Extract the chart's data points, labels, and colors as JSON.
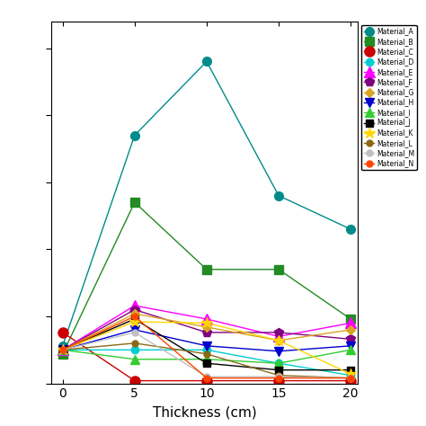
{
  "x": [
    0,
    5,
    10,
    15,
    20
  ],
  "series": [
    {
      "label": "Material_A",
      "color": "#008B8B",
      "marker": "o",
      "markersize": 7,
      "markerfacecolor": "#008B8B",
      "values": [
        0.28,
        1.85,
        2.4,
        1.4,
        1.15
      ]
    },
    {
      "label": "Material_B",
      "color": "#228B22",
      "marker": "s",
      "markersize": 7,
      "markerfacecolor": "#228B22",
      "values": [
        0.22,
        1.35,
        0.85,
        0.85,
        0.48
      ]
    },
    {
      "label": "Material_C",
      "color": "#cc0000",
      "marker": "o",
      "markersize": 8,
      "markerfacecolor": "#cc0000",
      "values": [
        0.38,
        0.02,
        0.02,
        0.02,
        0.02
      ]
    },
    {
      "label": "Material_D",
      "color": "#00ced1",
      "marker": "o",
      "markersize": 6,
      "markerfacecolor": "#00ced1",
      "values": [
        0.25,
        0.25,
        0.25,
        0.15,
        0.06
      ]
    },
    {
      "label": "Material_E",
      "color": "#ff00ff",
      "marker": "^",
      "markersize": 8,
      "markerfacecolor": "#ff00ff",
      "values": [
        0.25,
        0.58,
        0.48,
        0.35,
        0.45
      ]
    },
    {
      "label": "Material_F",
      "color": "#800080",
      "marker": "p",
      "markersize": 7,
      "markerfacecolor": "#800080",
      "values": [
        0.25,
        0.55,
        0.38,
        0.38,
        0.33
      ]
    },
    {
      "label": "Material_G",
      "color": "#DAA520",
      "marker": "D",
      "markersize": 5,
      "markerfacecolor": "#DAA520",
      "values": [
        0.25,
        0.52,
        0.42,
        0.32,
        0.4
      ]
    },
    {
      "label": "Material_H",
      "color": "#0000cd",
      "marker": "v",
      "markersize": 7,
      "markerfacecolor": "#0000cd",
      "values": [
        0.25,
        0.4,
        0.28,
        0.24,
        0.28
      ]
    },
    {
      "label": "Material_I",
      "color": "#32cd32",
      "marker": "^",
      "markersize": 7,
      "markerfacecolor": "#32cd32",
      "values": [
        0.25,
        0.18,
        0.18,
        0.15,
        0.25
      ]
    },
    {
      "label": "Material_J",
      "color": "#000000",
      "marker": "s",
      "markersize": 6,
      "markerfacecolor": "#000000",
      "values": [
        0.25,
        0.48,
        0.15,
        0.1,
        0.1
      ]
    },
    {
      "label": "Material_K",
      "color": "#ffd700",
      "marker": "*",
      "markersize": 9,
      "markerfacecolor": "#ffd700",
      "values": [
        0.25,
        0.46,
        0.45,
        0.32,
        0.07
      ]
    },
    {
      "label": "Material_L",
      "color": "#8B6914",
      "marker": "o",
      "markersize": 5,
      "markerfacecolor": "#8B6914",
      "values": [
        0.25,
        0.3,
        0.22,
        0.06,
        0.04
      ]
    },
    {
      "label": "Material_M",
      "color": "#c0c0c0",
      "marker": "o",
      "markersize": 5,
      "markerfacecolor": "#c0c0c0",
      "values": [
        0.25,
        0.38,
        0.05,
        0.05,
        0.04
      ]
    },
    {
      "label": "Material_N",
      "color": "#ff4500",
      "marker": "o",
      "markersize": 5,
      "markerfacecolor": "#ff4500",
      "values": [
        0.25,
        0.5,
        0.04,
        0.04,
        0.04
      ]
    }
  ],
  "xlabel": "Thickness (cm)",
  "xlim": [
    -0.8,
    20.5
  ],
  "ylim": [
    0,
    2.7
  ],
  "xticks": [
    0,
    5,
    10,
    15,
    20
  ],
  "background_color": "#ffffff",
  "legend_colors": [
    "#ff9999",
    "#ffcccc",
    "#00cc99",
    "#3399ff",
    "#00ffff",
    "#ff9900",
    "#cc6600",
    "#ffcc00",
    "#cccccc",
    "#ff66ff",
    "#999999",
    "#66ffcc",
    "#ffff99",
    "#ccffcc"
  ]
}
